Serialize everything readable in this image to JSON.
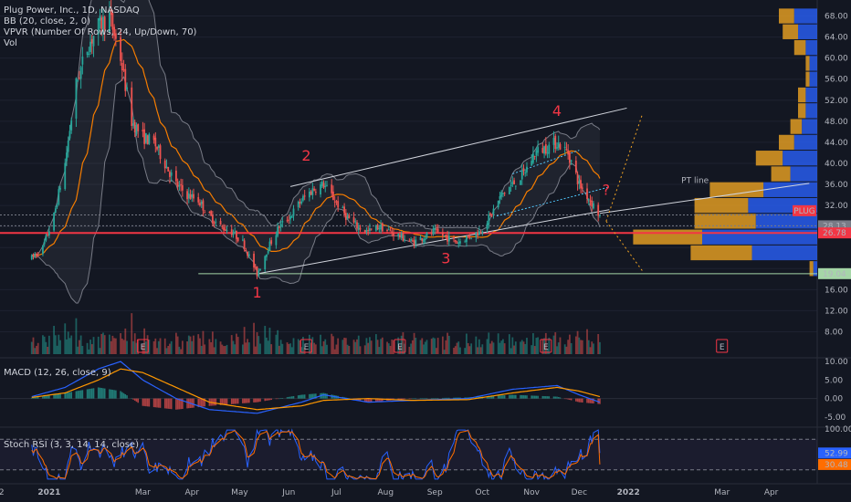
{
  "legend": {
    "title": "Plug Power, Inc., 1D, NASDAQ",
    "bb": "BB (20, close, 2, 0)",
    "vpvr": "VPVR (Number Of Rows, 24, Up/Down, 70)",
    "vol": "Vol"
  },
  "macd_label": "MACD (12, 26, close, 9)",
  "stoch_label": "Stoch RSI (3, 3, 14, 14, close)",
  "chart_data": {
    "type": "candlestick",
    "panes": [
      "price",
      "volume",
      "macd",
      "stoch_rsi"
    ],
    "symbol_tag": "PLUG",
    "pt_label": "PT line",
    "x_tick_labels": [
      "2",
      "2021",
      "Mar",
      "Apr",
      "May",
      "Jun",
      "Jul",
      "Aug",
      "Sep",
      "Oct",
      "Nov",
      "Dec",
      "2022",
      "Mar",
      "Apr"
    ],
    "price_axis": {
      "ticks": [
        68.0,
        64.0,
        60.0,
        56.0,
        52.0,
        48.0,
        44.0,
        40.0,
        36.0,
        32.0,
        28.0,
        24.0,
        20.0,
        16.0,
        12.0,
        8.0
      ],
      "tick_labels": [
        "68.00",
        "64.00",
        "60.00",
        "56.00",
        "52.00",
        "48.00",
        "44.00",
        "40.00",
        "36.00",
        "32.00",
        "",
        "",
        "",
        "16.00",
        "12.00",
        "8.00"
      ],
      "range": [
        6,
        70
      ],
      "price_labels": [
        {
          "text": "28.13",
          "value": 28.13,
          "color": "#787b86"
        },
        {
          "text": "26.78",
          "value": 26.78,
          "color": "#f23645"
        },
        {
          "text": "19.04",
          "value": 19.04,
          "color": "#a5d6a7"
        }
      ]
    },
    "price_path": [
      {
        "date": "2020-12-21",
        "price": 22
      },
      {
        "date": "2020-12-28",
        "price": 24
      },
      {
        "date": "2021-01-04",
        "price": 30
      },
      {
        "date": "2021-01-11",
        "price": 40
      },
      {
        "date": "2021-01-18",
        "price": 55
      },
      {
        "date": "2021-01-25",
        "price": 62
      },
      {
        "date": "2021-02-01",
        "price": 66
      },
      {
        "date": "2021-02-08",
        "price": 68
      },
      {
        "date": "2021-02-15",
        "price": 60
      },
      {
        "date": "2021-02-22",
        "price": 48
      },
      {
        "date": "2021-03-01",
        "price": 45
      },
      {
        "date": "2021-03-08",
        "price": 44
      },
      {
        "date": "2021-03-15",
        "price": 40
      },
      {
        "date": "2021-03-22",
        "price": 36
      },
      {
        "date": "2021-03-29",
        "price": 34
      },
      {
        "date": "2021-04-05",
        "price": 33
      },
      {
        "date": "2021-04-12",
        "price": 30
      },
      {
        "date": "2021-04-19",
        "price": 28
      },
      {
        "date": "2021-04-26",
        "price": 27
      },
      {
        "date": "2021-05-03",
        "price": 25
      },
      {
        "date": "2021-05-12",
        "price": 19
      },
      {
        "date": "2021-05-19",
        "price": 24
      },
      {
        "date": "2021-05-26",
        "price": 28
      },
      {
        "date": "2021-06-02",
        "price": 30
      },
      {
        "date": "2021-06-09",
        "price": 33
      },
      {
        "date": "2021-06-16",
        "price": 35
      },
      {
        "date": "2021-06-23",
        "price": 36
      },
      {
        "date": "2021-06-30",
        "price": 33
      },
      {
        "date": "2021-07-07",
        "price": 30
      },
      {
        "date": "2021-07-14",
        "price": 28
      },
      {
        "date": "2021-07-21",
        "price": 27
      },
      {
        "date": "2021-07-28",
        "price": 28
      },
      {
        "date": "2021-08-04",
        "price": 27
      },
      {
        "date": "2021-08-11",
        "price": 26
      },
      {
        "date": "2021-08-18",
        "price": 25
      },
      {
        "date": "2021-08-25",
        "price": 26
      },
      {
        "date": "2021-09-01",
        "price": 27
      },
      {
        "date": "2021-09-08",
        "price": 26
      },
      {
        "date": "2021-09-15",
        "price": 25
      },
      {
        "date": "2021-09-22",
        "price": 26
      },
      {
        "date": "2021-09-29",
        "price": 27
      },
      {
        "date": "2021-10-06",
        "price": 30
      },
      {
        "date": "2021-10-13",
        "price": 34
      },
      {
        "date": "2021-10-20",
        "price": 36
      },
      {
        "date": "2021-10-27",
        "price": 38
      },
      {
        "date": "2021-11-03",
        "price": 42
      },
      {
        "date": "2021-11-10",
        "price": 43
      },
      {
        "date": "2021-11-17",
        "price": 44
      },
      {
        "date": "2021-11-24",
        "price": 42
      },
      {
        "date": "2021-12-01",
        "price": 36
      },
      {
        "date": "2021-12-08",
        "price": 33
      },
      {
        "date": "2021-12-14",
        "price": 30
      }
    ],
    "annotations": [
      {
        "text": "1",
        "date": "2021-05-12",
        "price": 14.5
      },
      {
        "text": "2",
        "date": "2021-06-12",
        "price": 40.5
      },
      {
        "text": "3",
        "date": "2021-09-08",
        "price": 21
      },
      {
        "text": "4",
        "date": "2021-11-17",
        "price": 49
      },
      {
        "text": "?",
        "date": "2021-12-18",
        "price": 34
      }
    ],
    "earnings_markers": [
      {
        "text": "E",
        "date": "2021-03-01"
      },
      {
        "text": "E",
        "date": "2021-06-12"
      },
      {
        "text": "E",
        "date": "2021-08-10"
      },
      {
        "text": "E",
        "date": "2021-11-10"
      },
      {
        "text": "E",
        "date": "2022-03-01"
      }
    ],
    "volume_profile": {
      "bins": [
        {
          "price": 68,
          "up": 6,
          "down": 4
        },
        {
          "price": 65,
          "up": 5,
          "down": 4
        },
        {
          "price": 62,
          "up": 3,
          "down": 3
        },
        {
          "price": 59,
          "up": 2,
          "down": 1
        },
        {
          "price": 56,
          "up": 2,
          "down": 1
        },
        {
          "price": 53,
          "up": 3,
          "down": 2
        },
        {
          "price": 50,
          "up": 3,
          "down": 2
        },
        {
          "price": 47,
          "up": 4,
          "down": 3
        },
        {
          "price": 44,
          "up": 6,
          "down": 4
        },
        {
          "price": 41,
          "up": 9,
          "down": 7
        },
        {
          "price": 38,
          "up": 7,
          "down": 5
        },
        {
          "price": 35,
          "up": 14,
          "down": 14
        },
        {
          "price": 32,
          "up": 18,
          "down": 14
        },
        {
          "price": 29,
          "up": 16,
          "down": 16
        },
        {
          "price": 26,
          "up": 30,
          "down": 18
        },
        {
          "price": 23,
          "up": 17,
          "down": 16
        },
        {
          "price": 20,
          "up": 1,
          "down": 1
        }
      ]
    },
    "macd": {
      "axis_ticks": [
        10.0,
        5.0,
        0.0,
        -5.0
      ],
      "range": [
        -7,
        11
      ],
      "series": [
        {
          "date": "2020-12-21",
          "macd": 0.5,
          "signal": 0.3
        },
        {
          "date": "2021-01-11",
          "macd": 3,
          "signal": 1.5
        },
        {
          "date": "2021-02-01",
          "macd": 8,
          "signal": 5
        },
        {
          "date": "2021-02-15",
          "macd": 10,
          "signal": 8
        },
        {
          "date": "2021-03-01",
          "macd": 5,
          "signal": 7
        },
        {
          "date": "2021-03-22",
          "macd": 0,
          "signal": 3
        },
        {
          "date": "2021-04-12",
          "macd": -3,
          "signal": -1
        },
        {
          "date": "2021-05-12",
          "macd": -4,
          "signal": -3
        },
        {
          "date": "2021-06-09",
          "macd": -1,
          "signal": -2
        },
        {
          "date": "2021-06-23",
          "macd": 1,
          "signal": -0.5
        },
        {
          "date": "2021-07-21",
          "macd": -1,
          "signal": 0
        },
        {
          "date": "2021-08-18",
          "macd": -0.5,
          "signal": -0.5
        },
        {
          "date": "2021-09-22",
          "macd": 0,
          "signal": -0.3
        },
        {
          "date": "2021-10-20",
          "macd": 2.5,
          "signal": 1.5
        },
        {
          "date": "2021-11-17",
          "macd": 3.5,
          "signal": 3
        },
        {
          "date": "2021-12-01",
          "macd": 1,
          "signal": 2
        },
        {
          "date": "2021-12-14",
          "macd": -1,
          "signal": 0.5
        }
      ]
    },
    "stoch_rsi": {
      "axis_ticks": [
        100.0,
        52.99,
        30.48
      ],
      "tick_labels": [
        "100.00",
        "52.99",
        "30.48"
      ],
      "bands": [
        80,
        20
      ],
      "range": [
        0,
        100
      ],
      "last_k": 52.99,
      "last_d": 30.48
    }
  }
}
